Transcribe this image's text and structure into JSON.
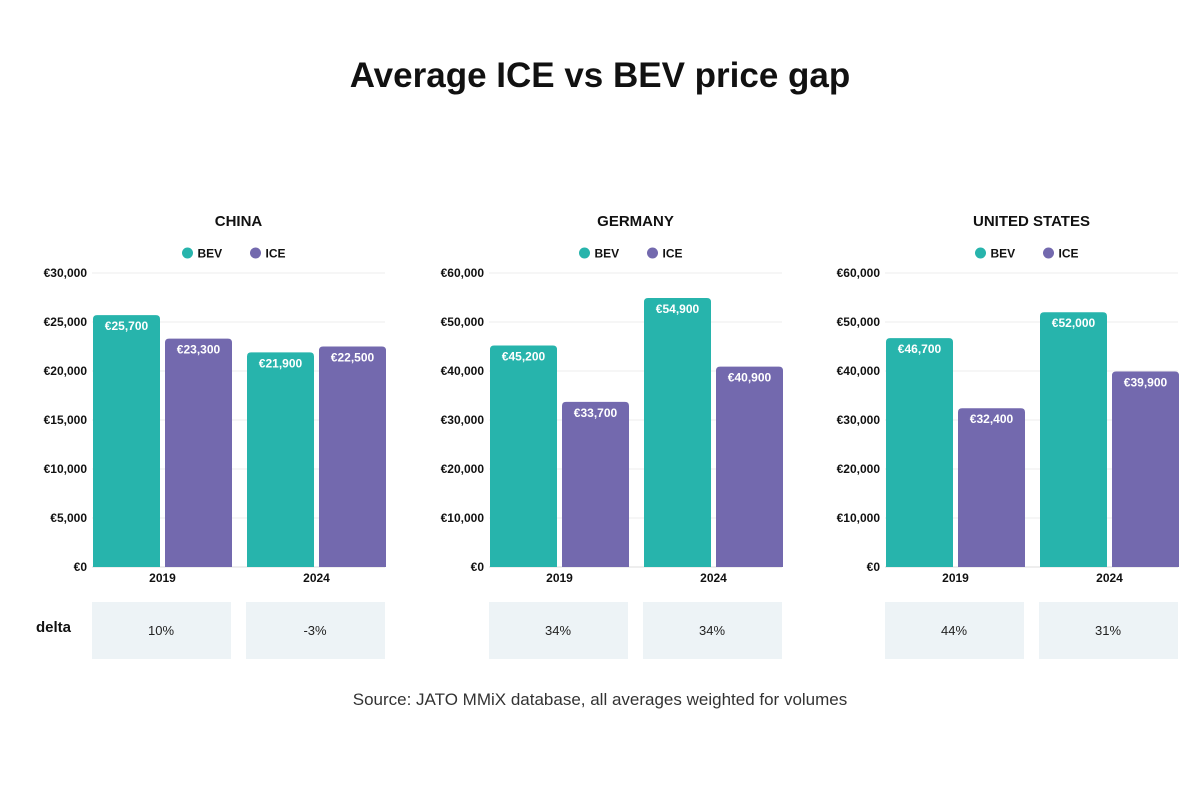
{
  "title": "Average ICE vs BEV price gap",
  "source": "Source: JATO MMiX database, all averages weighted for volumes",
  "delta_label": "delta",
  "colors": {
    "BEV": "#27b4ac",
    "ICE": "#7369ae",
    "delta_bg": "#edf3f6",
    "grid": "#ececec"
  },
  "chart_data": [
    {
      "type": "bar",
      "title": "CHINA",
      "categories": [
        "2019",
        "2024"
      ],
      "legend": [
        "BEV",
        "ICE"
      ],
      "legend_position": "top",
      "yticks": [
        "€0",
        "€5,000",
        "€10,000",
        "€15,000",
        "€20,000",
        "€25,000",
        "€30,000"
      ],
      "ylim": [
        0,
        30000
      ],
      "grid": true,
      "series": [
        {
          "name": "BEV",
          "values": [
            25700,
            21900
          ],
          "labels": [
            "€25,700",
            "€21,900"
          ]
        },
        {
          "name": "ICE",
          "values": [
            23300,
            22500
          ],
          "labels": [
            "€23,300",
            "€22,500"
          ]
        }
      ],
      "delta": [
        "10%",
        "-3%"
      ]
    },
    {
      "type": "bar",
      "title": "GERMANY",
      "categories": [
        "2019",
        "2024"
      ],
      "legend": [
        "BEV",
        "ICE"
      ],
      "legend_position": "top",
      "yticks": [
        "€0",
        "€10,000",
        "€20,000",
        "€30,000",
        "€40,000",
        "€50,000",
        "€60,000"
      ],
      "ylim": [
        0,
        60000
      ],
      "grid": true,
      "series": [
        {
          "name": "BEV",
          "values": [
            45200,
            54900
          ],
          "labels": [
            "€45,200",
            "€54,900"
          ]
        },
        {
          "name": "ICE",
          "values": [
            33700,
            40900
          ],
          "labels": [
            "€33,700",
            "€40,900"
          ]
        }
      ],
      "delta": [
        "34%",
        "34%"
      ]
    },
    {
      "type": "bar",
      "title": "UNITED STATES",
      "categories": [
        "2019",
        "2024"
      ],
      "legend": [
        "BEV",
        "ICE"
      ],
      "legend_position": "top",
      "yticks": [
        "€0",
        "€10,000",
        "€20,000",
        "€30,000",
        "€40,000",
        "€50,000",
        "€60,000"
      ],
      "ylim": [
        0,
        60000
      ],
      "grid": true,
      "series": [
        {
          "name": "BEV",
          "values": [
            46700,
            52000
          ],
          "labels": [
            "€46,700",
            "€52,000"
          ]
        },
        {
          "name": "ICE",
          "values": [
            32400,
            39900
          ],
          "labels": [
            "€32,400",
            "€39,900"
          ]
        }
      ],
      "delta": [
        "44%",
        "31%"
      ]
    }
  ]
}
